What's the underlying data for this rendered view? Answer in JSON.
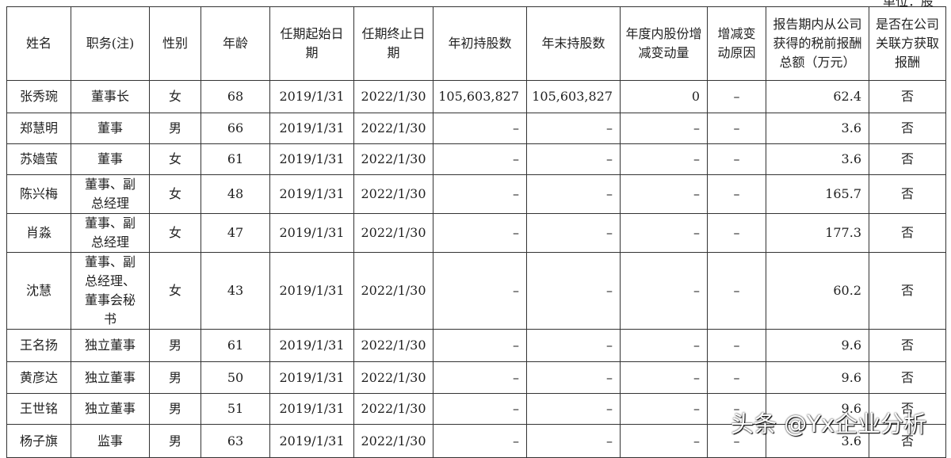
{
  "unit_label": "单位：股",
  "headers": [
    "姓名",
    "职务(注)",
    "性别",
    "年龄",
    "任期起始日期",
    "任期终止日期",
    "年初持股数",
    "年末持股数",
    "年度内股份增减变动量",
    "增减变动原因",
    "报告期内从公司获得的税前报酬总额（万元）",
    "是否在公司关联方获取报酬"
  ],
  "rows": [
    [
      "张秀琬",
      "董事长",
      "女",
      "68",
      "2019/1/31",
      "2022/1/30",
      "105,603,827",
      "105,603,827",
      "0",
      "–",
      "62.4",
      "否"
    ],
    [
      "郑慧明",
      "董事",
      "男",
      "66",
      "2019/1/31",
      "2022/1/30",
      "–",
      "–",
      "–",
      "–",
      "3.6",
      "否"
    ],
    [
      "苏嫱萤",
      "董事",
      "女",
      "61",
      "2019/1/31",
      "2022/1/30",
      "–",
      "–",
      "–",
      "–",
      "3.6",
      "否"
    ],
    [
      "陈兴梅",
      "董事、副总经理",
      "女",
      "48",
      "2019/1/31",
      "2022/1/30",
      "–",
      "–",
      "–",
      "–",
      "165.7",
      "否"
    ],
    [
      "肖淼",
      "董事、副总经理",
      "女",
      "47",
      "2019/1/31",
      "2022/1/30",
      "–",
      "–",
      "–",
      "–",
      "177.3",
      "否"
    ],
    [
      "沈慧",
      "董事、副总经理、董事会秘书",
      "女",
      "43",
      "2019/1/31",
      "2022/1/30",
      "–",
      "–",
      "–",
      "–",
      "60.2",
      "否"
    ],
    [
      "王名扬",
      "独立董事",
      "男",
      "61",
      "2019/1/31",
      "2022/1/30",
      "–",
      "–",
      "–",
      "–",
      "9.6",
      "否"
    ],
    [
      "黄彦达",
      "独立董事",
      "男",
      "50",
      "2019/1/31",
      "2022/1/30",
      "–",
      "–",
      "–",
      "–",
      "9.6",
      "否"
    ],
    [
      "王世铭",
      "独立董事",
      "男",
      "51",
      "2019/1/31",
      "2022/1/30",
      "–",
      "–",
      "–",
      "–",
      "9.6",
      "否"
    ],
    [
      "杨子旗",
      "监事",
      "男",
      "63",
      "2019/1/31",
      "2022/1/30",
      "–",
      "–",
      "–",
      "–",
      "3.6",
      "否"
    ]
  ],
  "watermark": "头条 @Yx企业分析"
}
